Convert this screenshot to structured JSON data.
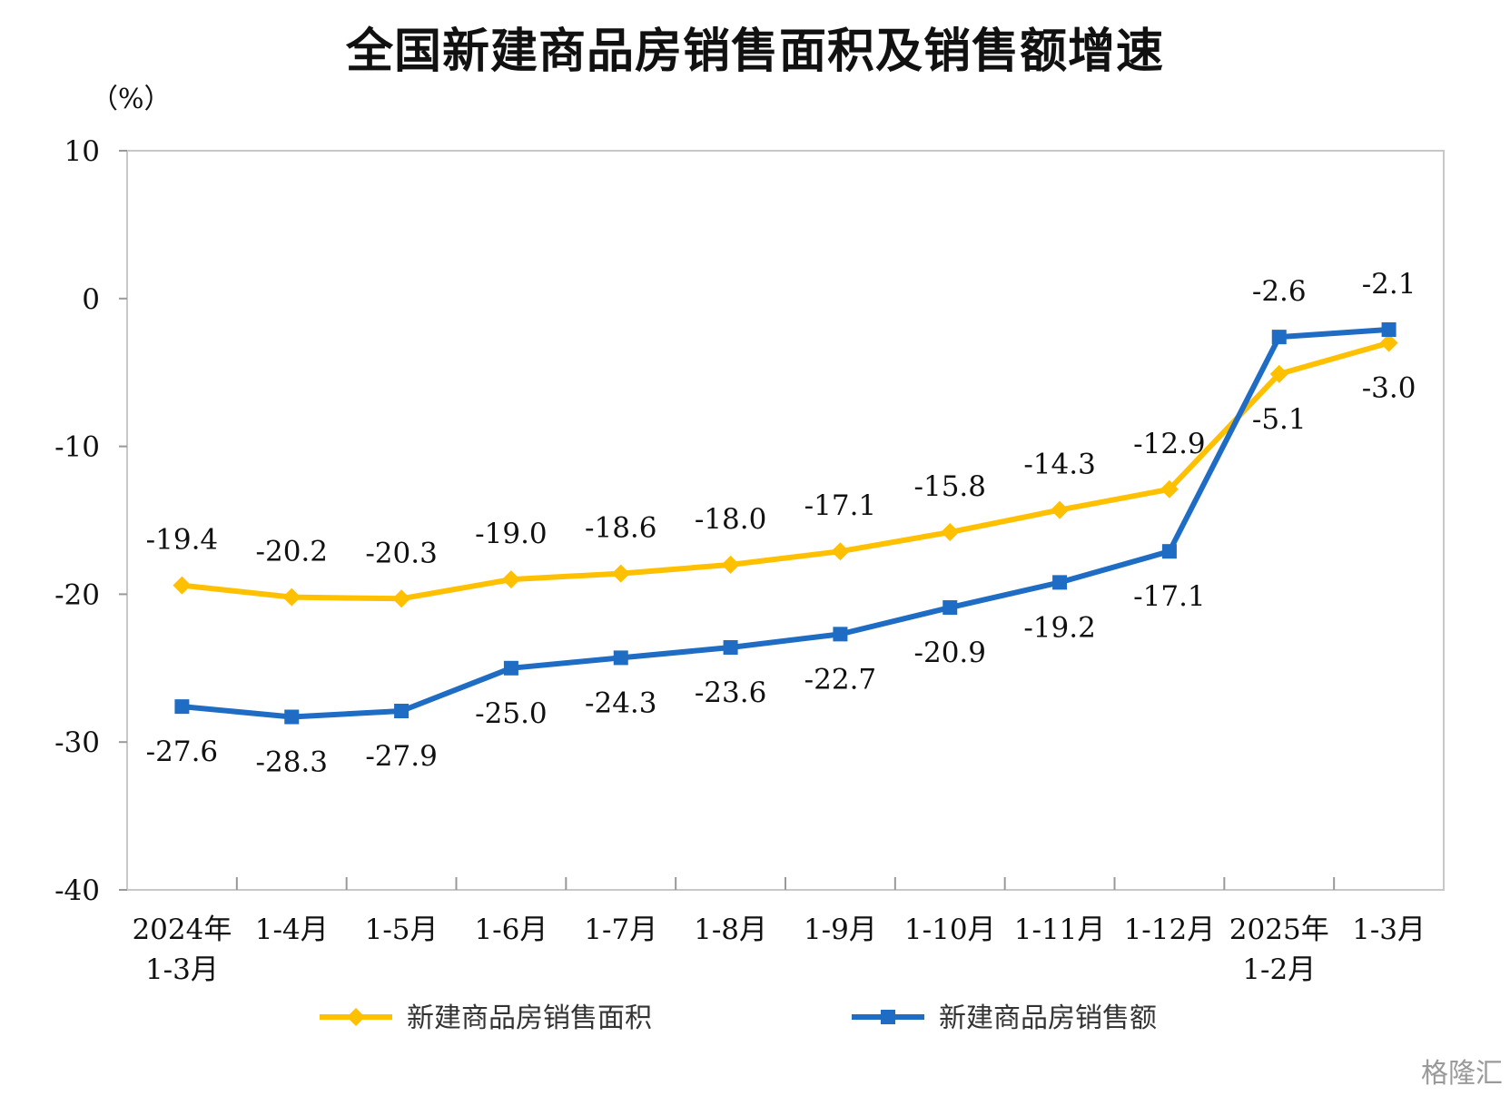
{
  "chart_data": {
    "type": "line",
    "title": "全国新建商品房销售面积及销售额增速",
    "ylabel": "（%）",
    "ylim": [
      -40,
      10
    ],
    "yticks": [
      10,
      0,
      -10,
      -20,
      -30,
      -40
    ],
    "categories": [
      [
        "2024年",
        "1-3月"
      ],
      [
        "1-4月"
      ],
      [
        "1-5月"
      ],
      [
        "1-6月"
      ],
      [
        "1-7月"
      ],
      [
        "1-8月"
      ],
      [
        "1-9月"
      ],
      [
        "1-10月"
      ],
      [
        "1-11月"
      ],
      [
        "1-12月"
      ],
      [
        "2025年",
        "1-2月"
      ],
      [
        "1-3月"
      ]
    ],
    "series": [
      {
        "name": "新建商品房销售面积",
        "color": "#FFC000",
        "marker": "diamond",
        "values": [
          -19.4,
          -20.2,
          -20.3,
          -19.0,
          -18.6,
          -18.0,
          -17.1,
          -15.8,
          -14.3,
          -12.9,
          -5.1,
          -3.0
        ],
        "labels": [
          "-19.4",
          "-20.2",
          "-20.3",
          "-19.0",
          "-18.6",
          "-18.0",
          "-17.1",
          "-15.8",
          "-14.3",
          "-12.9",
          "-5.1",
          "-3.0"
        ]
      },
      {
        "name": "新建商品房销售额",
        "color": "#1F6CC4",
        "marker": "square",
        "values": [
          -27.6,
          -28.3,
          -27.9,
          -25.0,
          -24.3,
          -23.6,
          -22.7,
          -20.9,
          -19.2,
          -17.1,
          -2.6,
          -2.1
        ],
        "labels": [
          "-27.6",
          "-28.3",
          "-27.9",
          "-25.0",
          "-24.3",
          "-23.6",
          "-22.7",
          "-20.9",
          "-19.2",
          "-17.1",
          "-2.6",
          "-2.1"
        ]
      }
    ],
    "grid": false,
    "legend_position": "bottom"
  },
  "watermark": "格隆汇"
}
